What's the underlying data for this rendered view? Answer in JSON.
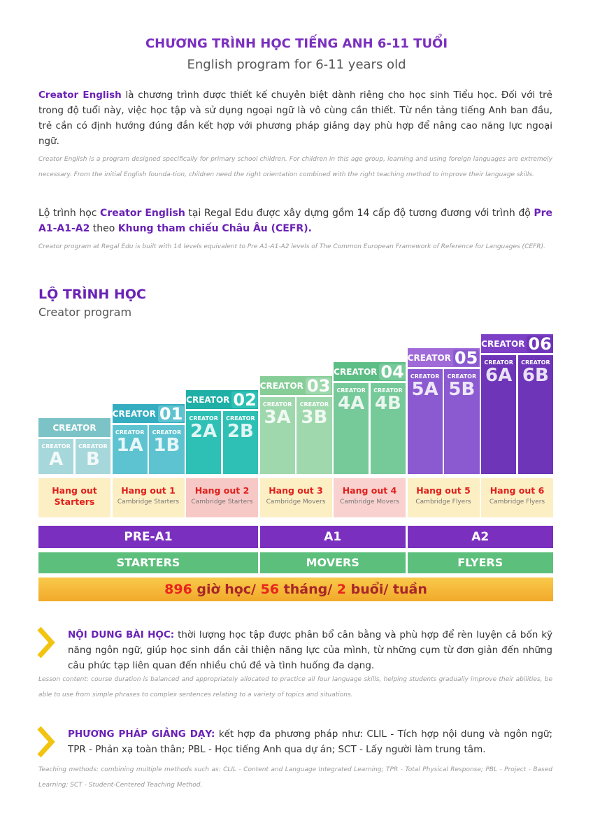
{
  "header": {
    "title": "CHƯƠNG TRÌNH HỌC TIẾNG ANH 6-11 TUỔI",
    "subtitle": "English program for 6-11 years old"
  },
  "intro": {
    "text": [
      "Creator English",
      " là chương trình được thiết kế chuyên biệt dành riêng cho học sinh Tiểu học. Đối với trẻ trong độ tuổi này, việc học tập và sử dụng ngoại ngữ là vô cùng cần thiết. Từ nền tảng tiếng Anh ban đầu, trẻ cần có định hướng đúng đắn kết hợp với phương pháp giảng dạy phù hợp để nâng cao năng lực ngoại ngữ."
    ],
    "translation": "Creator English is a program designed specifically for primary school children. For children in this age group, learning and using foreign languages are extremely necessary. From the initial English founda-tion, children need the right orientation combined with the right teaching method to improve their language skills."
  },
  "route": {
    "text": [
      "Lộ trình học ",
      "Creator English",
      " tại Regal Edu được xây dựng gồm 14 cấp độ tương đương với trình độ ",
      "Pre A1-A1-A2",
      " theo ",
      "Khung tham chiếu Châu Âu (CEFR)."
    ],
    "translation": "Creator program at Regal Edu is built with 14 levels equivalent to Pre A1-A1-A2 levels of The Common European Framework of Reference for Languages (CEFR)."
  },
  "program": {
    "title": "LỘ TRÌNH HỌC",
    "subtitle": "Creator program"
  },
  "levels": [
    {
      "label": "CREATOR",
      "subs": [
        {
          "tag": "CREATOR",
          "code": "A"
        },
        {
          "tag": "CREATOR",
          "code": "B"
        }
      ],
      "hangout": {
        "title": "Hang out Starters"
      }
    },
    {
      "label": "CREATOR",
      "number": "01",
      "subs": [
        {
          "tag": "CREATOR",
          "code": "1A"
        },
        {
          "tag": "CREATOR",
          "code": "1B"
        }
      ],
      "hangout": {
        "title": "Hang out 1",
        "subtitle": "Cambridge Starters"
      }
    },
    {
      "label": "CREATOR",
      "number": "02",
      "subs": [
        {
          "tag": "CREATOR",
          "code": "2A"
        },
        {
          "tag": "CREATOR",
          "code": "2B"
        }
      ],
      "hangout": {
        "title": "Hang out 2",
        "subtitle": "Cambridge Starters"
      }
    },
    {
      "label": "CREATOR",
      "number": "03",
      "subs": [
        {
          "tag": "CREATOR",
          "code": "3A"
        },
        {
          "tag": "CREATOR",
          "code": "3B"
        }
      ],
      "hangout": {
        "title": "Hang out 3",
        "subtitle": "Cambridge Movers"
      }
    },
    {
      "label": "CREATOR",
      "number": "04",
      "subs": [
        {
          "tag": "CREATOR",
          "code": "4A"
        },
        {
          "tag": "CREATOR",
          "code": "4B"
        }
      ],
      "hangout": {
        "title": "Hang out 4",
        "subtitle": "Cambridge Movers"
      }
    },
    {
      "label": "CREATOR",
      "number": "05",
      "subs": [
        {
          "tag": "CREATOR",
          "code": "5A"
        },
        {
          "tag": "CREATOR",
          "code": "5B"
        }
      ],
      "hangout": {
        "title": "Hang out 5",
        "subtitle": "Cambridge Flyers"
      }
    },
    {
      "label": "CREATOR",
      "number": "06",
      "subs": [
        {
          "tag": "CREATOR",
          "code": "6A"
        },
        {
          "tag": "CREATOR",
          "code": "6B"
        }
      ],
      "hangout": {
        "title": "Hang out 6",
        "subtitle": "Cambridge Flyers"
      }
    }
  ],
  "cefr": [
    "PRE-A1",
    "A1",
    "A2"
  ],
  "cambridge": [
    "STARTERS",
    "MOVERS",
    "FLYERS"
  ],
  "summary": [
    "896",
    " giờ học/ ",
    "56",
    " tháng/ ",
    "2",
    " buổi/ tuần"
  ],
  "sections": [
    {
      "heading": "NỘI DUNG BÀI HỌC:",
      "text": " thời lượng học tập được phân bổ cân bằng và phù hợp để rèn luyện cả bốn kỹ năng ngôn ngữ, giúp học sinh dần cải thiện năng lực của mình, từ những cụm từ đơn giản đến những câu phức tạp liên quan đến nhiều chủ đề và tình huống đa dạng.",
      "translation": "Lesson content: course duration is balanced and appropriately allocated to practice all four language skills, helping students gradually improve their abilities, be able to use from simple phrases to complex sentences relating to a variety  of topics and situations."
    },
    {
      "heading": "PHƯƠNG PHÁP GIẢNG DẠY:",
      "text": " kết hợp đa phương pháp như: CLIL - Tích hợp nội dung và ngôn ngữ; TPR - Phản xạ toàn thân; PBL - Học tiếng Anh qua dự án; SCT - Lấy người làm trung tâm.",
      "translation": "Teaching methods: combining multiple methods such as: CLIL - Content and Language Integrated Learning; TPR - Total Physical Response; PBL - Project - Based Learning; SCT - Student-Centered Teaching Method."
    }
  ]
}
